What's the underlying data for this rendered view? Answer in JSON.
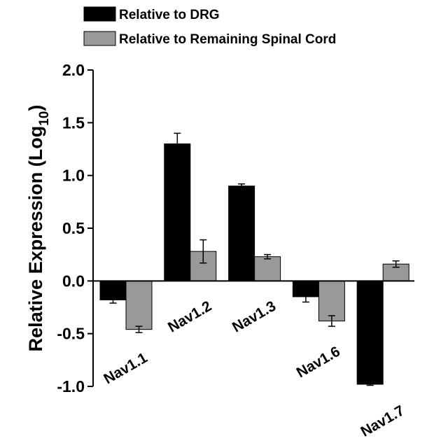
{
  "chart_data": {
    "type": "bar",
    "y_label": [
      "Relative Expression (Log",
      "10",
      ")"
    ],
    "categories": [
      "Nav1.1",
      "Nav1.2",
      "Nav1.3",
      "Nav1.6",
      "Nav1.7"
    ],
    "series": [
      {
        "name": "Relative to DRG",
        "color": "#000000",
        "values": [
          -0.18,
          1.3,
          0.9,
          -0.15,
          -0.98
        ],
        "errors": [
          0.03,
          0.1,
          0.02,
          0.05,
          0.01
        ]
      },
      {
        "name": "Relative to Remaining Spinal Cord",
        "color": "#999999",
        "values": [
          -0.46,
          0.28,
          0.23,
          -0.38,
          0.16
        ],
        "errors": [
          0.03,
          0.11,
          0.02,
          0.05,
          0.03
        ]
      }
    ],
    "ylim": [
      -1.0,
      2.0
    ],
    "yticks": [
      {
        "value": -1.0,
        "label": "-1.0"
      },
      {
        "value": -0.5,
        "label": "-0.5"
      },
      {
        "value": 0.0,
        "label": "0.0"
      },
      {
        "value": 0.5,
        "label": "0.5"
      },
      {
        "value": 1.0,
        "label": "1.0"
      },
      {
        "value": 1.5,
        "label": "1.5"
      },
      {
        "value": 2.0,
        "label": "2.0"
      }
    ]
  }
}
